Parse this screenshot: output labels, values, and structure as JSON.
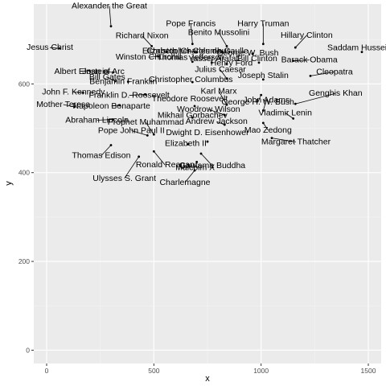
{
  "chart_data": {
    "type": "scatter",
    "title": "",
    "xlabel": "x",
    "ylabel": "y",
    "xlim": [
      -60,
      1560
    ],
    "ylim": [
      -30,
      780
    ],
    "x_ticks": [
      0,
      500,
      1000,
      1500
    ],
    "y_ticks": [
      0,
      200,
      400,
      600
    ],
    "grid": true,
    "legend": "none",
    "colors": {
      "panel": "#ebebeb",
      "grid_major": "#ffffff",
      "grid_minor": "#f4f4f4",
      "point": "#000000",
      "segment": "#000000"
    },
    "points": [
      {
        "label": "Alexander the Great",
        "x": 300,
        "y": 730
      },
      {
        "label": "Pope Francis",
        "x": 680,
        "y": 690
      },
      {
        "label": "Harry Truman",
        "x": 1010,
        "y": 690
      },
      {
        "label": "Jesus Christ",
        "x": 60,
        "y": 680
      },
      {
        "label": "Richard Nixon",
        "x": 490,
        "y": 685
      },
      {
        "label": "Benito Mussolini",
        "x": 840,
        "y": 685
      },
      {
        "label": "Hillary Clinton",
        "x": 1160,
        "y": 682
      },
      {
        "label": "Elizabeth I",
        "x": 560,
        "y": 672
      },
      {
        "label": "Christopher Columbus",
        "x": 700,
        "y": 672
      },
      {
        "label": "Charles de Gaulle",
        "x": 820,
        "y": 672
      },
      {
        "label": "George W. Bush",
        "x": 960,
        "y": 668
      },
      {
        "label": "Saddam Hussein",
        "x": 1470,
        "y": 672
      },
      {
        "label": "Winston Churchill",
        "x": 520,
        "y": 662
      },
      {
        "label": "Thomas Jefferson",
        "x": 680,
        "y": 650
      },
      {
        "label": "Yasser Arafat",
        "x": 770,
        "y": 648
      },
      {
        "label": "Henry Ford",
        "x": 840,
        "y": 645
      },
      {
        "label": "Bill Clinton",
        "x": 990,
        "y": 648
      },
      {
        "label": "Barack Obama",
        "x": 1150,
        "y": 652
      },
      {
        "label": "Albert Einstein",
        "x": 200,
        "y": 630
      },
      {
        "label": "Joan of Arc",
        "x": 310,
        "y": 626
      },
      {
        "label": "Julius Caesar",
        "x": 840,
        "y": 612
      },
      {
        "label": "Joseph Stalin",
        "x": 1010,
        "y": 610
      },
      {
        "label": "Cleopatra",
        "x": 1230,
        "y": 618
      },
      {
        "label": "Bill Gates",
        "x": 320,
        "y": 606
      },
      {
        "label": "Benjamin Franklin",
        "x": 380,
        "y": 605
      },
      {
        "label": "Christopher Columbus",
        "x": 680,
        "y": 604
      },
      {
        "label": "John F. Kennedy",
        "x": 170,
        "y": 580
      },
      {
        "label": "Franklin D. Roosevelt",
        "x": 460,
        "y": 576
      },
      {
        "label": "George H. W. Bush",
        "x": 1000,
        "y": 575
      },
      {
        "label": "Theodore Roosevelt",
        "x": 690,
        "y": 550
      },
      {
        "label": "Mother Teresa",
        "x": 130,
        "y": 548
      },
      {
        "label": "Napoleon Bonaparte",
        "x": 340,
        "y": 552
      },
      {
        "label": "John Adams",
        "x": 1010,
        "y": 540
      },
      {
        "label": "Genghis Khan",
        "x": 1160,
        "y": 555
      },
      {
        "label": "Karl Marx",
        "x": 840,
        "y": 553
      },
      {
        "label": "Abraham Lincoln",
        "x": 310,
        "y": 520
      },
      {
        "label": "Mikhail Gorbachev",
        "x": 680,
        "y": 524
      },
      {
        "label": "Woodrow Wilson",
        "x": 830,
        "y": 530
      },
      {
        "label": "Vladimir Lenin",
        "x": 1150,
        "y": 522
      },
      {
        "label": "Andrew Jackson",
        "x": 830,
        "y": 508
      },
      {
        "label": "Mao Zedong",
        "x": 1010,
        "y": 512
      },
      {
        "label": "Prophet Muhammad",
        "x": 500,
        "y": 486
      },
      {
        "label": "Pope John Paul II",
        "x": 470,
        "y": 484
      },
      {
        "label": "Elizabeth II",
        "x": 660,
        "y": 464
      },
      {
        "label": "Dwight D. Eisenhower",
        "x": 750,
        "y": 470
      },
      {
        "label": "Margaret Thatcher",
        "x": 1050,
        "y": 478
      },
      {
        "label": "Thomas Edison",
        "x": 300,
        "y": 462
      },
      {
        "label": "Ronald Reagan",
        "x": 500,
        "y": 448
      },
      {
        "label": "Gautama Buddha",
        "x": 720,
        "y": 443
      },
      {
        "label": "Ulysses S. Grant",
        "x": 430,
        "y": 436
      },
      {
        "label": "Malcolm X",
        "x": 700,
        "y": 424
      },
      {
        "label": "Charlemagne",
        "x": 690,
        "y": 405
      }
    ]
  }
}
